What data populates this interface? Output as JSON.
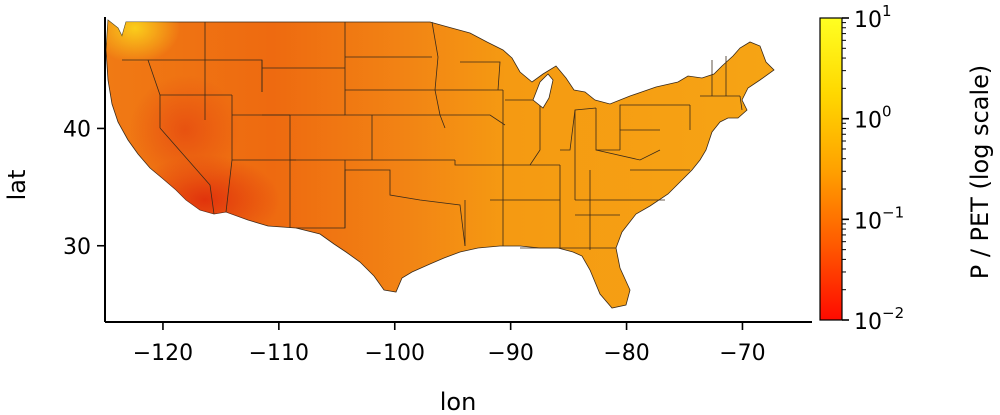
{
  "map": {
    "region": "contiguous United States",
    "value_field": "P / PET",
    "scale": "log",
    "land_color_typical": "#F59A12",
    "arid_color": "#E8400E",
    "wet_color": "#FBD41A"
  },
  "axes": {
    "xlabel": "lon",
    "ylabel": "lat",
    "xlim": [
      -125,
      -64
    ],
    "ylim": [
      23.5,
      49.5
    ],
    "xticks": [
      {
        "value": -120,
        "label": "−120"
      },
      {
        "value": -110,
        "label": "−110"
      },
      {
        "value": -100,
        "label": "−100"
      },
      {
        "value": -90,
        "label": "−90"
      },
      {
        "value": -80,
        "label": "−80"
      },
      {
        "value": -70,
        "label": "−70"
      }
    ],
    "yticks": [
      {
        "value": 40,
        "label": "40"
      },
      {
        "value": 30,
        "label": "30"
      }
    ]
  },
  "colorbar": {
    "label": "P / PET (log scale)",
    "range": [
      0.01,
      10
    ],
    "colors": [
      "#FF0A00",
      "#FF5A00",
      "#FFA200",
      "#FFD800",
      "#FFFF22"
    ],
    "ticks": [
      {
        "value": 10,
        "base": "10",
        "exp": "1"
      },
      {
        "value": 1,
        "base": "10",
        "exp": "0"
      },
      {
        "value": 0.1,
        "base": "10",
        "exp": "−1"
      },
      {
        "value": 0.01,
        "base": "10",
        "exp": "−2"
      }
    ]
  }
}
